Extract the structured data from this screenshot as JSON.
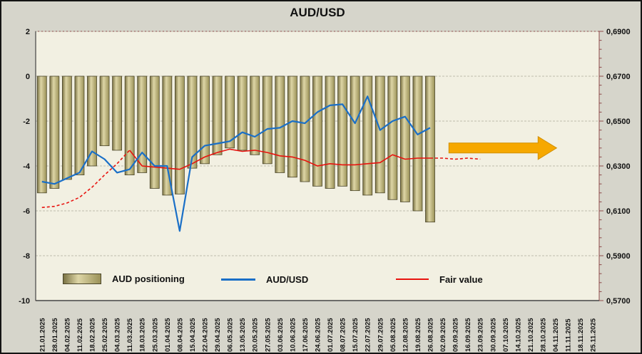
{
  "legend": {
    "positioning_label": "AUD positioning",
    "audusd_label": "AUD/USD",
    "fair_value_label": "Fair value"
  },
  "colors": {
    "background": "#d6d5cb",
    "plot_bg": "#f2f0e2",
    "bar_fill_dark": "#7a7243",
    "bar_fill_light": "#ded6a6",
    "bar_fill_mid": "#9a9157",
    "bar_stroke": "#4a452a",
    "audusd_line": "#1a6fc7",
    "fair_value_line": "#e8120e",
    "arrow_fill": "#f6a800",
    "arrow_stroke": "#d18f00",
    "grid": "#bfbdac",
    "axis_maroon": "#8f4a4a",
    "axis_dark": "#444444",
    "text": "#111111"
  },
  "chart_data": {
    "type": "bar",
    "title": "AUD/USD",
    "xlabel": "",
    "ylabel": "",
    "grid": true,
    "legend_position": "bottom-inside",
    "x": [
      "21.01.2025",
      "28.01.2025",
      "04.02.2025",
      "11.02.2025",
      "18.02.2025",
      "25.02.2025",
      "04.03.2025",
      "11.03.2025",
      "18.03.2025",
      "25.03.2025",
      "01.04.2025",
      "08.04.2025",
      "15.04.2025",
      "22.04.2025",
      "29.04.2025",
      "06.05.2025",
      "13.05.2025",
      "20.05.2025",
      "27.05.2025",
      "03.06.2025",
      "10.06.2025",
      "17.06.2025",
      "24.06.2025",
      "01.07.2025",
      "08.07.2025",
      "15.07.2025",
      "22.07.2025",
      "29.07.2025",
      "05.08.2025",
      "12.08.2025",
      "19.08.2025",
      "26.08.2025",
      "02.09.2025",
      "09.09.2025",
      "16.09.2025",
      "23.09.2025",
      "30.09.2025",
      "07.10.2025",
      "14.10.2025",
      "21.10.2025",
      "28.10.2025",
      "04.11.2025",
      "11.11.2025",
      "18.11.2025",
      "25.11.2025"
    ],
    "left_axis": {
      "min": -10,
      "max": 2,
      "tick_values": [
        2,
        0,
        -2,
        -4,
        -6,
        -8,
        -10
      ],
      "tick_labels": [
        "2",
        "0",
        "-2",
        "-4",
        "-6",
        "-8",
        "-10"
      ]
    },
    "right_axis": {
      "min": 0.57,
      "max": 0.69,
      "tick_values": [
        0.69,
        0.67,
        0.65,
        0.63,
        0.61,
        0.59,
        0.57
      ],
      "tick_labels": [
        "0,6900",
        "0,6700",
        "0,6500",
        "0,6300",
        "0,6100",
        "0,5900",
        "0,5700"
      ],
      "minor_step": 0.004
    },
    "series": [
      {
        "name": "AUD positioning",
        "type": "bar",
        "axis": "left",
        "values": [
          -5.2,
          -5.0,
          -4.6,
          -4.4,
          -4.0,
          -3.1,
          -3.3,
          -4.4,
          -4.3,
          -5.0,
          -5.3,
          -5.25,
          -4.1,
          -3.9,
          -3.5,
          -3.2,
          -3.3,
          -3.5,
          -3.9,
          -4.3,
          -4.5,
          -4.7,
          -4.9,
          -5.0,
          -4.9,
          -5.1,
          -5.3,
          -5.2,
          -5.5,
          -5.6,
          -6.0,
          -6.5,
          null,
          null,
          null,
          null,
          null,
          null,
          null,
          null,
          null,
          null,
          null,
          null,
          null
        ]
      },
      {
        "name": "AUD/USD",
        "type": "line",
        "axis": "right",
        "values": [
          0.623,
          0.622,
          0.6245,
          0.627,
          0.6365,
          0.633,
          0.627,
          0.6285,
          0.636,
          0.63,
          0.63,
          0.601,
          0.634,
          0.639,
          0.64,
          0.641,
          0.645,
          0.643,
          0.6465,
          0.647,
          0.65,
          0.649,
          0.654,
          0.657,
          0.6575,
          0.649,
          0.661,
          0.646,
          0.65,
          0.652,
          0.644,
          0.647,
          null,
          null,
          null,
          null,
          null,
          null,
          null,
          null,
          null,
          null,
          null,
          null,
          null
        ]
      },
      {
        "name": "Fair value",
        "type": "line",
        "axis": "right",
        "dashed_before_index": 7,
        "dashed_after_index": 31,
        "values": [
          0.6115,
          0.612,
          0.6135,
          0.616,
          0.6205,
          0.626,
          0.631,
          0.637,
          0.63,
          0.6295,
          0.629,
          0.6285,
          0.631,
          0.634,
          0.636,
          0.6375,
          0.6365,
          0.637,
          0.636,
          0.6345,
          0.634,
          0.6325,
          0.63,
          0.631,
          0.6305,
          0.6305,
          0.631,
          0.6315,
          0.635,
          0.633,
          0.6335,
          0.6335,
          0.6335,
          0.633,
          0.6335,
          0.633,
          null,
          null,
          null,
          null,
          null,
          null,
          null,
          null,
          null
        ]
      }
    ],
    "annotations": {
      "forward_arrow": {
        "start_slot": 33,
        "end_slot": 41.6,
        "right_value": 0.638
      }
    }
  }
}
